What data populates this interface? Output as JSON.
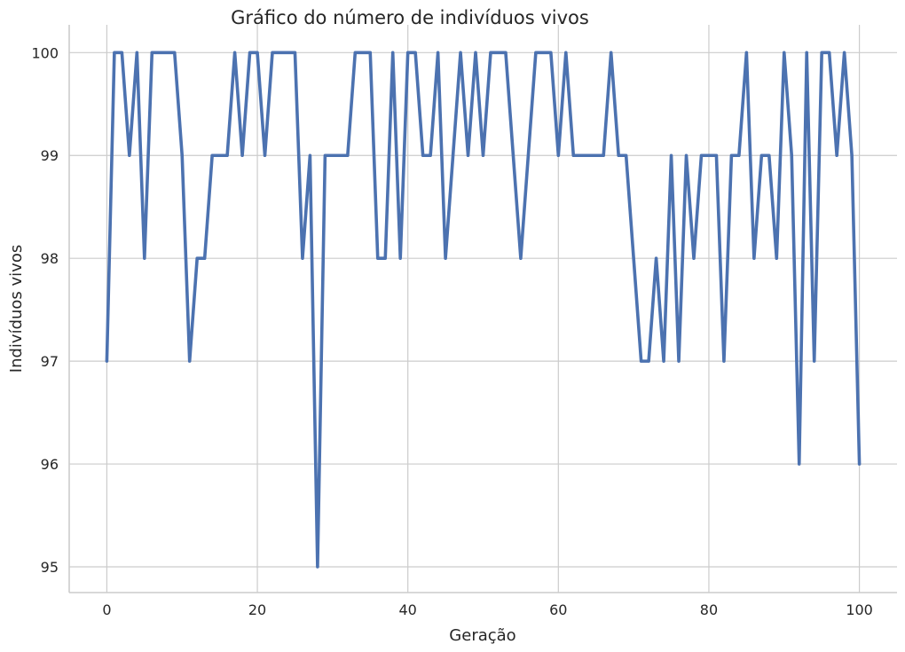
{
  "chart_data": {
    "type": "line",
    "title": "Gráfico do número de indivíduos vivos",
    "xlabel": "Geração",
    "ylabel": "Indivíduos vivos",
    "xlim": [
      -5,
      105
    ],
    "ylim": [
      94.75,
      100.27
    ],
    "xticks": [
      0,
      20,
      40,
      60,
      80,
      100
    ],
    "yticks": [
      95,
      96,
      97,
      98,
      99,
      100
    ],
    "grid": true,
    "line_color": "#4c72b0",
    "series": [
      {
        "x": [
          0,
          1,
          2,
          3,
          4,
          5,
          6,
          7,
          8,
          9,
          10,
          11,
          12,
          13,
          14,
          15,
          16,
          17,
          18,
          19,
          20,
          21,
          22,
          23,
          24,
          25,
          26,
          27,
          28,
          29,
          30,
          31,
          32,
          33,
          34,
          35,
          36,
          37,
          38,
          39,
          40,
          41,
          42,
          43,
          44,
          45,
          46,
          47,
          48,
          49,
          50,
          51,
          52,
          53,
          54,
          55,
          56,
          57,
          58,
          59,
          60,
          61,
          62,
          63,
          64,
          65,
          66,
          67,
          68,
          69,
          70,
          71,
          72,
          73,
          74,
          75,
          76,
          77,
          78,
          79,
          80,
          81,
          82,
          83,
          84,
          85,
          86,
          87,
          88,
          89,
          90,
          91,
          92,
          93,
          94,
          95,
          96,
          97,
          98,
          99,
          100
        ],
        "values": [
          97,
          100,
          100,
          99,
          100,
          98,
          100,
          100,
          100,
          100,
          99,
          97,
          98,
          98,
          99,
          99,
          99,
          100,
          99,
          100,
          100,
          99,
          100,
          100,
          100,
          100,
          98,
          99,
          95,
          99,
          99,
          99,
          99,
          100,
          100,
          100,
          98,
          98,
          100,
          98,
          100,
          100,
          99,
          99,
          100,
          98,
          99,
          100,
          99,
          100,
          99,
          100,
          100,
          100,
          99,
          98,
          99,
          100,
          100,
          100,
          99,
          100,
          99,
          99,
          99,
          99,
          99,
          100,
          99,
          99,
          98,
          97,
          97,
          98,
          97,
          99,
          97,
          99,
          98,
          99,
          99,
          99,
          97,
          99,
          99,
          100,
          98,
          99,
          99,
          98,
          100,
          99,
          96,
          100,
          97,
          100,
          100,
          99,
          100,
          99,
          96
        ]
      }
    ]
  }
}
